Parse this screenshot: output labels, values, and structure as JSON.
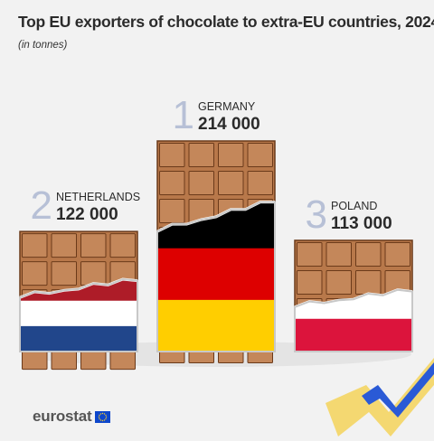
{
  "title": "Top EU exporters of chocolate to extra-EU countries, 2024",
  "subtitle": "(in tonnes)",
  "brand": "eurostat",
  "colors": {
    "background": "#f2f2f2",
    "chocolate": "#b8784a",
    "chocolate_line": "#6b3a1a",
    "rank_number": "#b7c0d6",
    "wrapper_edge": "#c8c8c8",
    "eu_blue": "#0e47cb",
    "eu_yellow": "#f2c830"
  },
  "chart_data": {
    "type": "bar",
    "title": "Top EU exporters of chocolate to extra-EU countries, 2024",
    "subtitle": "(in tonnes)",
    "categories": [
      "NETHERLANDS",
      "GERMANY",
      "POLAND"
    ],
    "ranks": [
      "2",
      "1",
      "3"
    ],
    "values": [
      122000,
      214000,
      113000
    ],
    "value_labels": [
      "122 000",
      "214 000",
      "113 000"
    ],
    "flags": [
      [
        "#ae1c28",
        "#ffffff",
        "#21468b"
      ],
      [
        "#000000",
        "#dd0000",
        "#ffce00"
      ],
      [
        "#ffffff",
        "#dc143c"
      ]
    ]
  }
}
